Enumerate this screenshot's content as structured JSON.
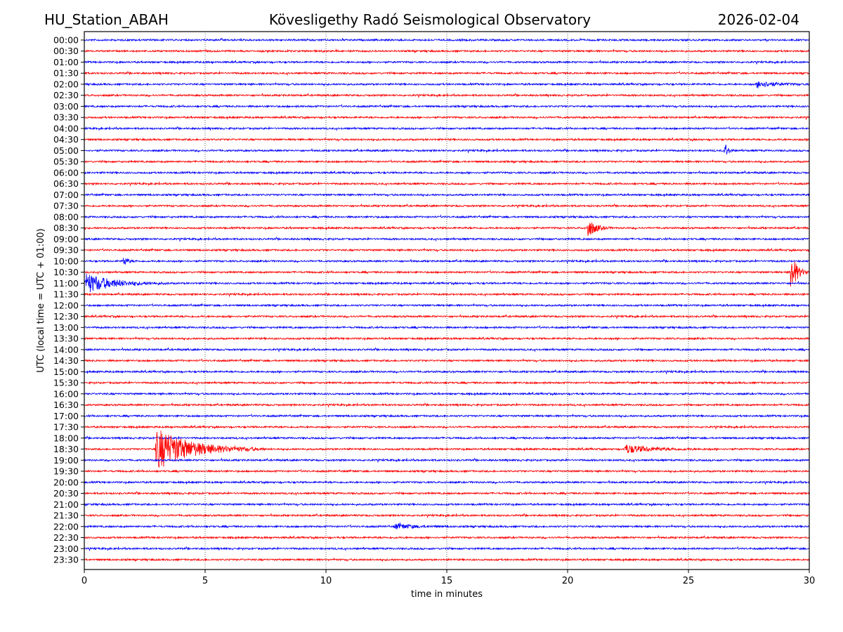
{
  "chart_data": {
    "type": "line",
    "title_left": "HU_Station_ABAH",
    "title": "Kövesligethy Radó Seismological Observatory",
    "title_right": "2026-02-04",
    "xlabel": "time in minutes",
    "ylabel": "UTC (local time = UTC + 01:00)",
    "xlim": [
      0,
      30
    ],
    "x_ticks": [
      "0",
      "5",
      "10",
      "15",
      "20",
      "25",
      "30"
    ],
    "grid": "vertical dotted",
    "row_labels": [
      "00:00",
      "00:30",
      "01:00",
      "01:30",
      "02:00",
      "02:30",
      "03:00",
      "03:30",
      "04:00",
      "04:30",
      "05:00",
      "05:30",
      "06:00",
      "06:30",
      "07:00",
      "07:30",
      "08:00",
      "08:30",
      "09:00",
      "09:30",
      "10:00",
      "10:30",
      "11:00",
      "11:30",
      "12:00",
      "12:30",
      "13:00",
      "13:30",
      "14:00",
      "14:30",
      "15:00",
      "15:30",
      "16:00",
      "16:30",
      "17:00",
      "17:30",
      "18:00",
      "18:30",
      "19:00",
      "19:30",
      "20:00",
      "20:30",
      "21:00",
      "21:30",
      "22:00",
      "22:30",
      "23:00",
      "23:30"
    ],
    "series_colors": [
      "#0000ff",
      "#ff0000"
    ],
    "events": [
      {
        "row": "02:00",
        "start_min": 27.8,
        "duration_min": 2.2,
        "amplitude": 0.25
      },
      {
        "row": "05:00",
        "start_min": 26.5,
        "duration_min": 0.4,
        "amplitude": 0.6
      },
      {
        "row": "08:30",
        "start_min": 20.8,
        "duration_min": 1.0,
        "amplitude": 0.75
      },
      {
        "row": "10:00",
        "start_min": 1.6,
        "duration_min": 0.6,
        "amplitude": 0.35
      },
      {
        "row": "10:30",
        "start_min": 29.2,
        "duration_min": 0.8,
        "amplitude": 1.6
      },
      {
        "row": "11:00",
        "start_min": 0.0,
        "duration_min": 3.5,
        "amplitude": 0.7
      },
      {
        "row": "18:30",
        "start_min": 2.9,
        "duration_min": 4.6,
        "amplitude": 1.5
      },
      {
        "row": "18:30",
        "start_min": 22.3,
        "duration_min": 3.6,
        "amplitude": 0.3
      },
      {
        "row": "22:00",
        "start_min": 12.8,
        "duration_min": 2.5,
        "amplitude": 0.2
      }
    ]
  }
}
